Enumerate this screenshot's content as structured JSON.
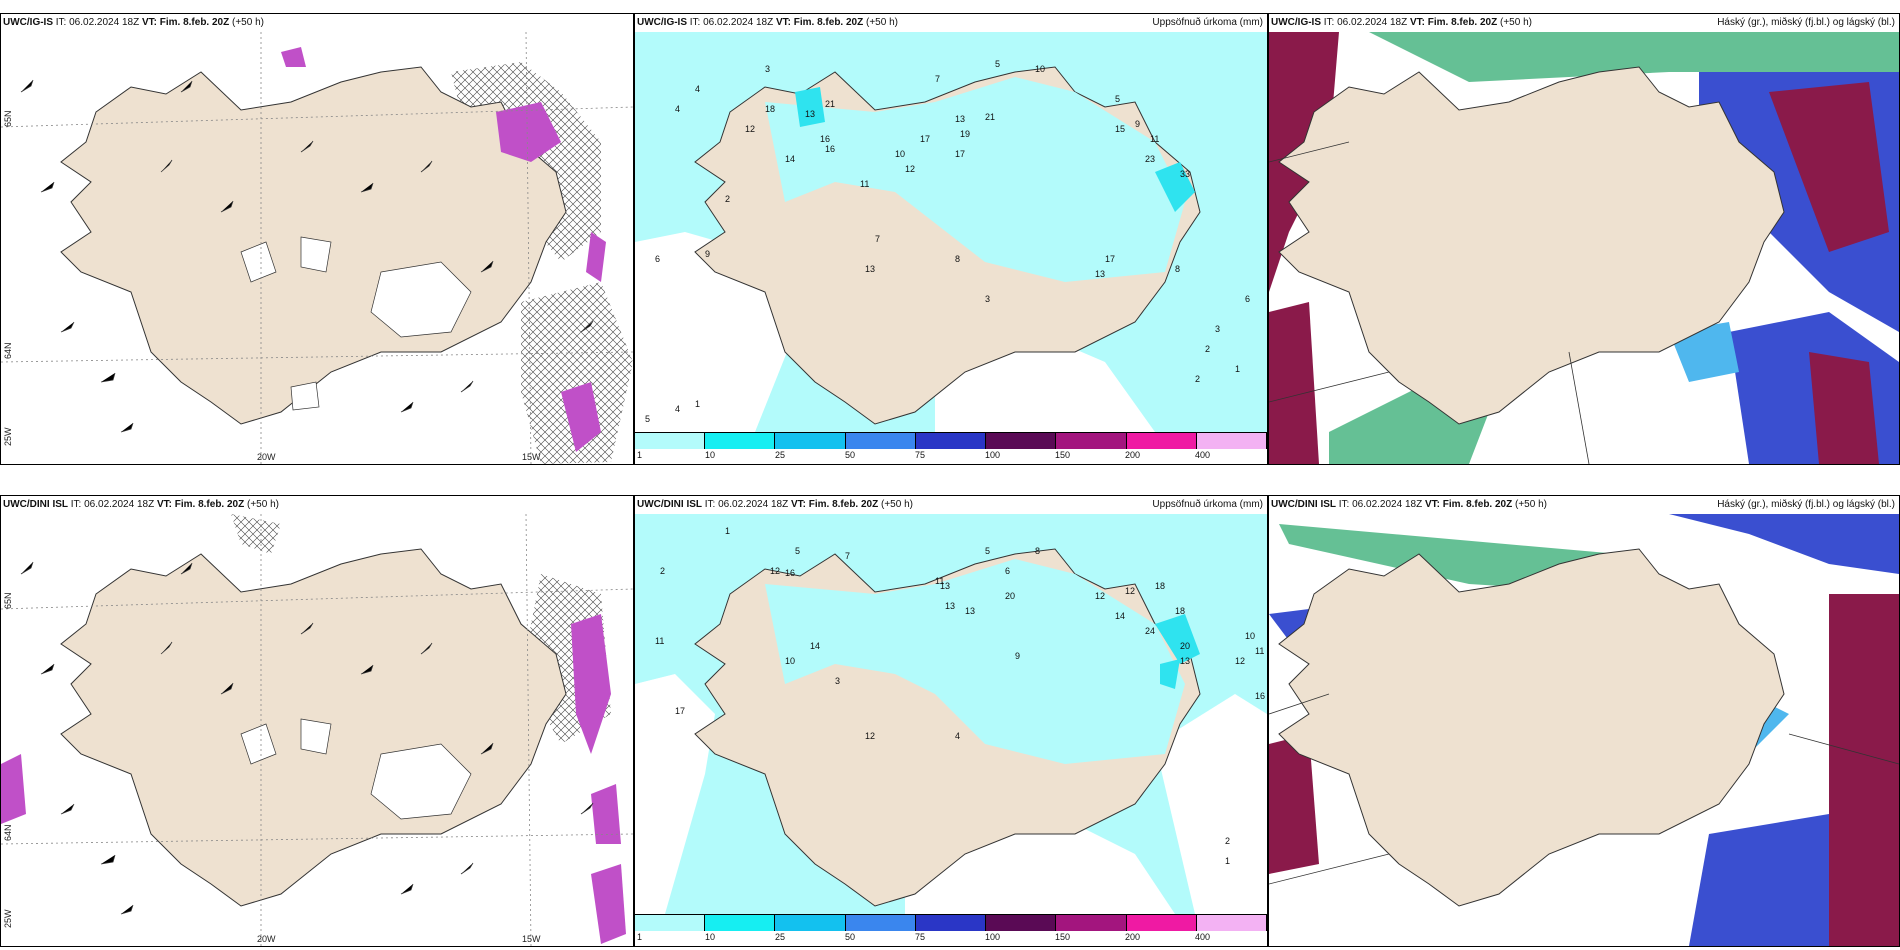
{
  "colors": {
    "land": "#eee1d0",
    "coast": "#333333",
    "precip": "#b3fbfb",
    "precip_hi": "#2fe3ef",
    "magenta": "#c050c8",
    "icing_light": "#4fb7ee",
    "icing_mid": "#3a4fd0",
    "icing_dark": "#8a1a4a",
    "green": "#3fb07a"
  },
  "panels": {
    "p1": {
      "model": "UWC/IG-IS",
      "it_label": "IT:",
      "it_value": "06.02.2024 18Z",
      "vt_label": "VT:",
      "vt_value": "Fim. 8.feb. 20Z",
      "lead": "(+50 h)"
    },
    "p2": {
      "model": "UWC/IG-IS",
      "it_label": "IT:",
      "it_value": "06.02.2024 18Z",
      "vt_label": "VT:",
      "vt_value": "Fim. 8.feb. 20Z",
      "lead": "(+50 h)",
      "right_title": "Uppsöfnuð úrkoma (mm)"
    },
    "p3": {
      "model": "UWC/IG-IS",
      "it_label": "IT:",
      "it_value": "06.02.2024 18Z",
      "vt_label": "VT:",
      "vt_value": "Fim. 8.feb. 20Z",
      "lead": "(+50 h)",
      "right_title": "Háský (gr.), miðský (fj.bl.) og lágský (bl.)"
    },
    "p4": {
      "model": "UWC/DINI ISL",
      "it_label": "IT:",
      "it_value": "06.02.2024 18Z",
      "vt_label": "VT:",
      "vt_value": "Fim. 8.feb. 20Z",
      "lead": "(+50 h)"
    },
    "p5": {
      "model": "UWC/DINI ISL",
      "it_label": "IT:",
      "it_value": "06.02.2024 18Z",
      "vt_label": "VT:",
      "vt_value": "Fim. 8.feb. 20Z",
      "lead": "(+50 h)",
      "right_title": "Uppsöfnuð úrkoma (mm)"
    },
    "p6": {
      "model": "UWC/DINI ISL",
      "it_label": "IT:",
      "it_value": "06.02.2024 18Z",
      "vt_label": "VT:",
      "vt_value": "Fim. 8.feb. 20Z",
      "lead": "(+50 h)",
      "right_title": "Háský (gr.), miðský (fj.bl.) og lágský (bl.)"
    }
  },
  "axes": {
    "lon_20w": "20W",
    "lon_15w": "15W",
    "lat_65n": "65N",
    "lat_64n": "64N",
    "lat_25w": "25W"
  },
  "colorbar": {
    "labels": [
      "1",
      "10",
      "25",
      "50",
      "75",
      "100",
      "150",
      "200",
      "400"
    ],
    "colors": [
      "#b3fbfb",
      "#16eef2",
      "#13c1ef",
      "#3a86ee",
      "#2a36c6",
      "#5a0a55",
      "#a3157e",
      "#ef1aa3",
      "#f3b2f3"
    ]
  },
  "precip_values_top": [
    "4",
    "3",
    "7",
    "5",
    "10",
    "12",
    "13",
    "21",
    "16",
    "18",
    "17",
    "19",
    "13",
    "21",
    "17",
    "23",
    "33",
    "11",
    "14",
    "9",
    "8",
    "6",
    "2",
    "12",
    "11",
    "10",
    "5",
    "7",
    "8",
    "3",
    "4",
    "13",
    "17",
    "9",
    "15",
    "13",
    "16",
    "6",
    "2",
    "1",
    "5",
    "4",
    "3",
    "2",
    "1"
  ],
  "precip_values_bottom": [
    "1",
    "2",
    "5",
    "12",
    "16",
    "13",
    "14",
    "10",
    "7",
    "11",
    "12",
    "14",
    "12",
    "13",
    "18",
    "13",
    "20",
    "11",
    "16",
    "18",
    "24",
    "20",
    "12",
    "13",
    "10",
    "11",
    "8",
    "17",
    "12",
    "9",
    "4",
    "5",
    "6",
    "3",
    "2",
    "1"
  ]
}
